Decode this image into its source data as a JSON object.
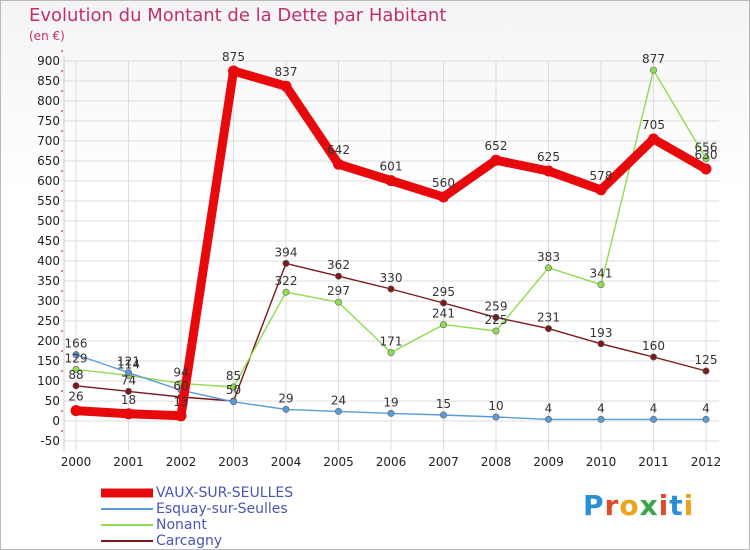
{
  "title": "Evolution du Montant de la Dette par Habitant",
  "subtitle": "(en €)",
  "logo": {
    "text": "Proxiti",
    "letters": [
      {
        "ch": "P",
        "color": "#2a8fd6"
      },
      {
        "ch": "r",
        "color": "#e0492b"
      },
      {
        "ch": "o",
        "color": "#f0a21c"
      },
      {
        "ch": "x",
        "color": "#3aa646"
      },
      {
        "ch": "i",
        "color": "#e0492b"
      },
      {
        "ch": "t",
        "color": "#2a8fd6"
      },
      {
        "ch": "i",
        "color": "#f0a21c"
      }
    ]
  },
  "chart_data": {
    "type": "line",
    "title": "Evolution du Montant de la Dette par Habitant",
    "subtitle": "(en €)",
    "xlabel": "",
    "ylabel": "",
    "x": [
      "2000",
      "2001",
      "2002",
      "2003",
      "2004",
      "2005",
      "2006",
      "2007",
      "2008",
      "2009",
      "2010",
      "2011",
      "2012"
    ],
    "ylim": [
      -50,
      900
    ],
    "yticks": [
      -50,
      0,
      50,
      100,
      150,
      200,
      250,
      300,
      350,
      400,
      450,
      500,
      550,
      600,
      650,
      700,
      750,
      800,
      850,
      900
    ],
    "grid": true,
    "legend_position": "bottom-left",
    "series": [
      {
        "name": "VAUX-SUR-SEULLES",
        "color": "#e8090c",
        "values": [
          26,
          18,
          13,
          875,
          837,
          642,
          601,
          560,
          652,
          625,
          578,
          705,
          630
        ],
        "labels": [
          "26",
          "18",
          "13",
          "875",
          "837",
          "642",
          "601",
          "560",
          "652",
          "625",
          "578",
          "705",
          "630"
        ]
      },
      {
        "name": "Esquay-sur-Seulles",
        "color": "#5b9bd5",
        "values": [
          166,
          121,
          77,
          48,
          29,
          24,
          19,
          15,
          10,
          4,
          4,
          4,
          4
        ],
        "labels": [
          "166",
          "121",
          "",
          "",
          "29",
          "24",
          "19",
          "15",
          "10",
          "4",
          "4",
          "4",
          "4"
        ]
      },
      {
        "name": "Nonant",
        "color": "#8fdc4f",
        "values": [
          129,
          114,
          94,
          85,
          322,
          297,
          171,
          241,
          225,
          383,
          341,
          877,
          656
        ],
        "labels": [
          "129",
          "114",
          "94",
          "85",
          "322",
          "297",
          "171",
          "241",
          "225",
          "383",
          "341",
          "877",
          "656"
        ]
      },
      {
        "name": "Carcagny",
        "color": "#7a1a1a",
        "values": [
          88,
          74,
          60,
          50,
          394,
          362,
          330,
          295,
          259,
          231,
          193,
          160,
          125
        ],
        "labels": [
          "88",
          "74",
          "60",
          "50",
          "394",
          "362",
          "330",
          "295",
          "259",
          "231",
          "193",
          "160",
          "125"
        ]
      }
    ]
  }
}
